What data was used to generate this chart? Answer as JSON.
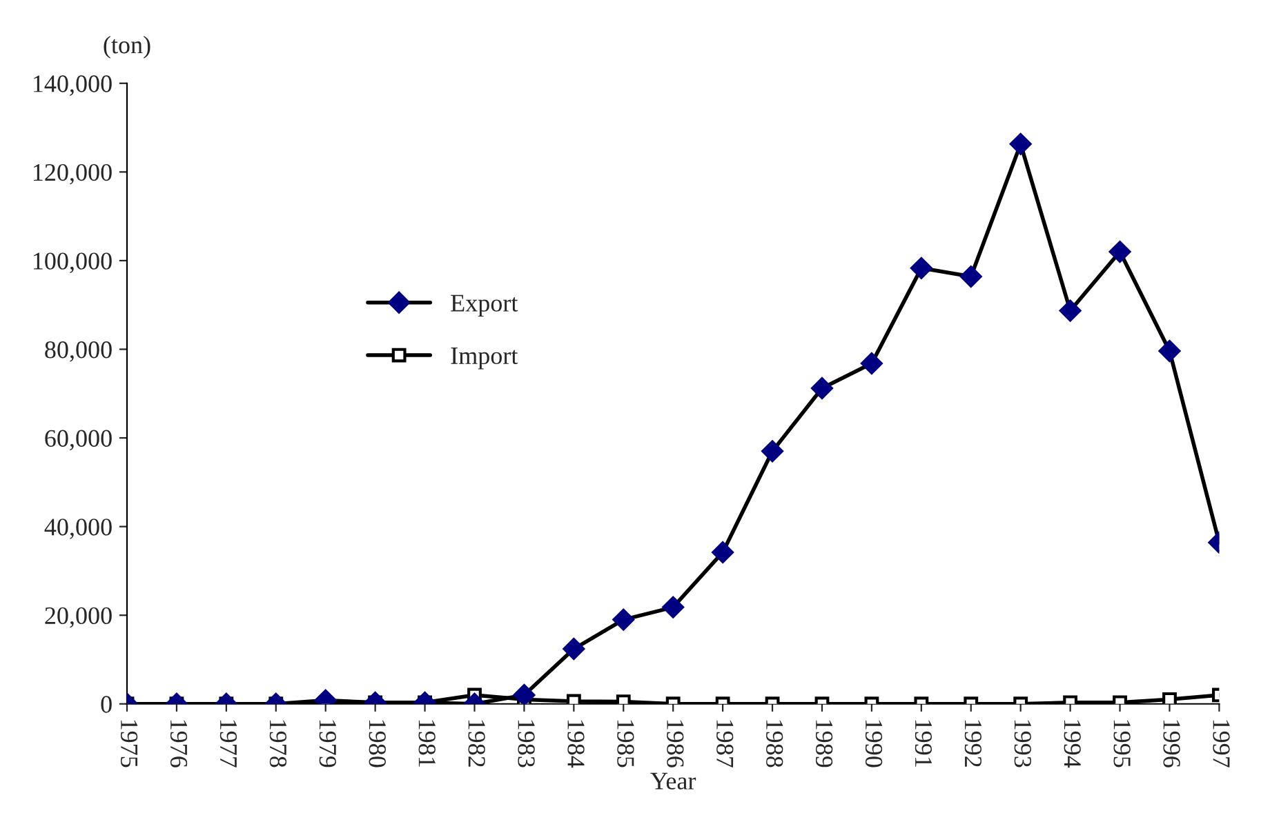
{
  "chart_data": {
    "type": "line",
    "xlabel": "Year",
    "ylabel": "(ton)",
    "categories": [
      "1975",
      "1976",
      "1977",
      "1978",
      "1979",
      "1980",
      "1981",
      "1982",
      "1983",
      "1984",
      "1985",
      "1986",
      "1987",
      "1988",
      "1989",
      "1990",
      "1991",
      "1992",
      "1993",
      "1994",
      "1995",
      "1996",
      "1997"
    ],
    "series": [
      {
        "name": "Export",
        "color": "#000080",
        "marker": "diamond",
        "values": [
          0,
          0,
          0,
          0,
          800,
          300,
          300,
          0,
          2000,
          12400,
          19000,
          21800,
          34200,
          57000,
          71200,
          76800,
          98300,
          96400,
          126300,
          88700,
          102000,
          79600,
          36400
        ]
      },
      {
        "name": "Import",
        "color": "#ffffff",
        "marker": "square",
        "values": [
          0,
          0,
          0,
          0,
          0,
          300,
          300,
          2000,
          1000,
          600,
          500,
          0,
          0,
          0,
          0,
          0,
          0,
          0,
          0,
          300,
          300,
          1000,
          2000
        ]
      }
    ],
    "ylim": [
      0,
      140000
    ],
    "yticks": [
      {
        "value": 0,
        "label": "0"
      },
      {
        "value": 20000,
        "label": "20,000"
      },
      {
        "value": 40000,
        "label": "40,000"
      },
      {
        "value": 60000,
        "label": "60,000"
      },
      {
        "value": 80000,
        "label": "80,000"
      },
      {
        "value": 100000,
        "label": "100,000"
      },
      {
        "value": 120000,
        "label": "120,000"
      },
      {
        "value": 140000,
        "label": "140,000"
      }
    ],
    "grid": false,
    "legend": "center left",
    "line_style": "solid"
  }
}
